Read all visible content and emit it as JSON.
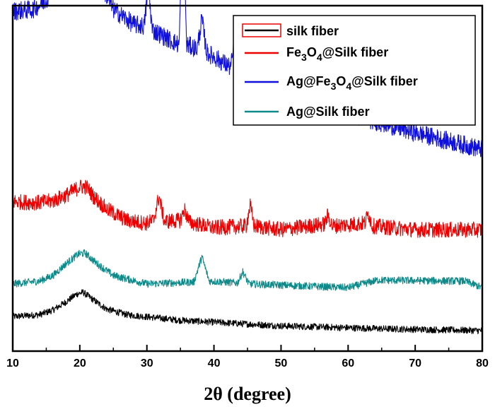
{
  "chart_data": {
    "type": "line",
    "title": "",
    "xlabel": "2θ (degree)",
    "ylabel": "",
    "xlim": [
      10,
      80
    ],
    "x_ticks": [
      10,
      20,
      30,
      40,
      50,
      60,
      70,
      80
    ],
    "x_tick_labels": [
      "10",
      "20",
      "30",
      "40",
      "50",
      "60",
      "70",
      "80"
    ],
    "y_ticks_shown": false,
    "grid": false,
    "legend_position": "top-right",
    "series": [
      {
        "name": "silk fiber",
        "legend_label": "silk fiber",
        "color": "#000000",
        "baseline": 0.85,
        "noise": 0.18,
        "points": [
          [
            10,
            0.0
          ],
          [
            14,
            0.1
          ],
          [
            16,
            0.35
          ],
          [
            18,
            0.8
          ],
          [
            19.5,
            1.2
          ],
          [
            20.5,
            1.3
          ],
          [
            22,
            0.9
          ],
          [
            24,
            0.4
          ],
          [
            27,
            0.1
          ],
          [
            35,
            -0.2
          ],
          [
            50,
            -0.5
          ],
          [
            65,
            -0.65
          ],
          [
            80,
            -0.75
          ]
        ]
      },
      {
        "name": "Ag@Silk fiber",
        "legend_label": "Ag@Silk fiber",
        "color": "#0e8a8a",
        "baseline": 2.6,
        "noise": 0.2,
        "points": [
          [
            10,
            0.0
          ],
          [
            14,
            0.15
          ],
          [
            16,
            0.45
          ],
          [
            18,
            1.1
          ],
          [
            19.8,
            1.6
          ],
          [
            20.8,
            1.65
          ],
          [
            22.5,
            1.1
          ],
          [
            25,
            0.45
          ],
          [
            30,
            0.0
          ],
          [
            37,
            0.1
          ],
          [
            38.2,
            1.45
          ],
          [
            39.3,
            0.15
          ],
          [
            43.5,
            0.05
          ],
          [
            44.3,
            0.65
          ],
          [
            45.2,
            0.0
          ],
          [
            60,
            -0.2
          ],
          [
            64.4,
            0.2
          ],
          [
            77.4,
            0.15
          ],
          [
            80,
            -0.2
          ]
        ]
      },
      {
        "name": "Fe3O4@Silk fiber",
        "legend_label": "Fe3O4@Silk fiber",
        "color": "#ee0000",
        "baseline": 5.7,
        "noise": 0.42,
        "points": [
          [
            10,
            1.3
          ],
          [
            14,
            1.25
          ],
          [
            16,
            1.35
          ],
          [
            18,
            1.65
          ],
          [
            20,
            2.1
          ],
          [
            21,
            2.1
          ],
          [
            22,
            1.6
          ],
          [
            24,
            0.9
          ],
          [
            27,
            0.3
          ],
          [
            30,
            0.15
          ],
          [
            31,
            0.3
          ],
          [
            31.8,
            1.6
          ],
          [
            32.6,
            0.25
          ],
          [
            35,
            0.3
          ],
          [
            35.6,
            0.9
          ],
          [
            36.3,
            0.2
          ],
          [
            40,
            -0.1
          ],
          [
            44.8,
            0.0
          ],
          [
            45.4,
            1.1
          ],
          [
            46.0,
            0.0
          ],
          [
            50,
            -0.2
          ],
          [
            56.5,
            0.1
          ],
          [
            57.0,
            0.6
          ],
          [
            57.6,
            0.0
          ],
          [
            62.5,
            0.15
          ],
          [
            63.0,
            0.7
          ],
          [
            63.6,
            0.0
          ],
          [
            70,
            -0.2
          ],
          [
            80,
            -0.2
          ]
        ]
      },
      {
        "name": "Ag@Fe3O4@Silk fiber",
        "legend_label": "Ag@Fe3O4@Silk fiber",
        "color": "#1010dd",
        "baseline": 10.0,
        "noise": 0.5,
        "points": [
          [
            10,
            7.2
          ],
          [
            13,
            7.3
          ],
          [
            15,
            7.8
          ],
          [
            17,
            9.6
          ],
          [
            18.5,
            12.6
          ],
          [
            19.5,
            14.9
          ],
          [
            20.3,
            15.5
          ],
          [
            21,
            14.5
          ],
          [
            22,
            11.2
          ],
          [
            23.5,
            8.4
          ],
          [
            25,
            7.3
          ],
          [
            28,
            6.5
          ],
          [
            29.6,
            6.4
          ],
          [
            30.2,
            8.6
          ],
          [
            30.8,
            6.2
          ],
          [
            34.8,
            5.4
          ],
          [
            35.45,
            13.0
          ],
          [
            35.9,
            5.4
          ],
          [
            37.5,
            5.2
          ],
          [
            38.2,
            6.8
          ],
          [
            38.9,
            5.0
          ],
          [
            42.5,
            4.2
          ],
          [
            43.1,
            5.5
          ],
          [
            43.7,
            4.0
          ],
          [
            50,
            3.0
          ],
          [
            56.5,
            2.1
          ],
          [
            57.0,
            3.2
          ],
          [
            57.6,
            2.0
          ],
          [
            62.1,
            1.5
          ],
          [
            62.6,
            3.7
          ],
          [
            63.2,
            1.4
          ],
          [
            70,
            0.7
          ],
          [
            80,
            -0.2
          ]
        ]
      }
    ]
  },
  "legend": {
    "items": [
      {
        "label": "silk fiber",
        "color": "#000000"
      },
      {
        "label_base": "Fe",
        "label_sub1": "3",
        "label_mid": "O",
        "label_sub2": "4",
        "label_rest": "@Silk fiber",
        "color": "#ee0000"
      },
      {
        "label_pre": "Ag@Fe",
        "label_sub1": "3",
        "label_mid": "O",
        "label_sub2": "4",
        "label_rest": "@Silk fiber",
        "color": "#1010dd"
      },
      {
        "label": "Ag@Silk fiber",
        "color": "#0e8a8a"
      }
    ],
    "highlight_color": "#ee0000"
  }
}
